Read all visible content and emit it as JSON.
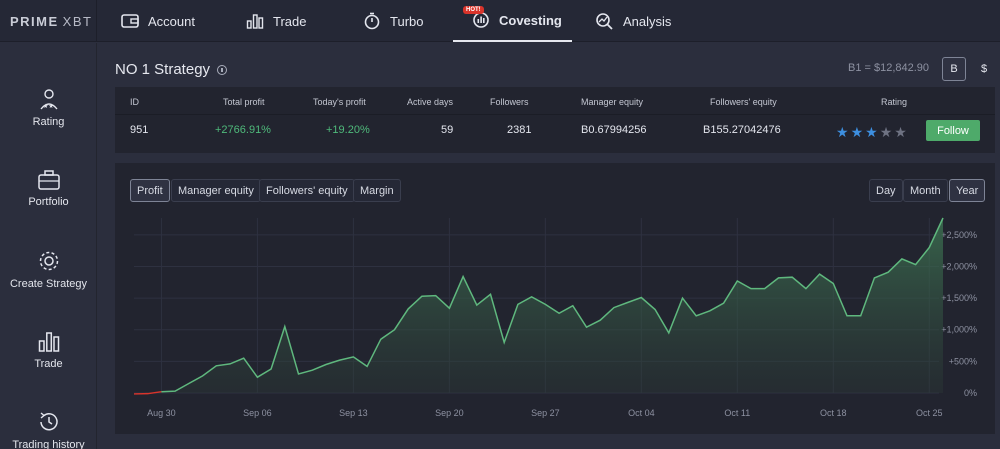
{
  "logo": {
    "brand": "PRIME",
    "suffix": "XBT"
  },
  "nav": [
    {
      "label": "Account",
      "icon": "wallet-icon"
    },
    {
      "label": "Trade",
      "icon": "bar-chart-icon"
    },
    {
      "label": "Turbo",
      "icon": "stopwatch-icon"
    },
    {
      "label": "Covesting",
      "icon": "covesting-icon",
      "badge": "HOT!",
      "active": true
    },
    {
      "label": "Analysis",
      "icon": "analysis-icon"
    }
  ],
  "sidebar": [
    {
      "label": "Rating",
      "icon": "rating-icon"
    },
    {
      "label": "Portfolio",
      "icon": "briefcase-icon"
    },
    {
      "label": "Create Strategy",
      "icon": "gear-icon"
    },
    {
      "label": "Trade",
      "icon": "bar-chart-icon"
    },
    {
      "label": "Trading history",
      "icon": "history-icon"
    }
  ],
  "strategy": {
    "title": "NO 1 Strategy",
    "balance": "B1 = $12,842.90",
    "currency_buttons": [
      {
        "label": "B",
        "active": true
      },
      {
        "label": "$",
        "active": false
      }
    ]
  },
  "table": {
    "headers": [
      "ID",
      "Total profit",
      "Today's profit",
      "Active days",
      "Followers",
      "Manager equity",
      "Followers' equity",
      "Rating"
    ],
    "row": {
      "id": "951",
      "total_profit": "+2766.91%",
      "today_profit": "+19.20%",
      "active_days": "59",
      "followers": "2381",
      "manager_equity": "B0.67994256",
      "followers_equity": "B155.27042476",
      "rating": 3,
      "rating_max": 5
    },
    "follow_label": "Follow"
  },
  "chart_tabs": [
    {
      "label": "Profit",
      "active": true
    },
    {
      "label": "Manager equity",
      "active": false
    },
    {
      "label": "Followers' equity",
      "active": false
    },
    {
      "label": "Margin",
      "active": false
    }
  ],
  "range_tabs": [
    {
      "label": "Day",
      "active": false
    },
    {
      "label": "Month",
      "active": false
    },
    {
      "label": "Year",
      "active": true
    }
  ],
  "colors": {
    "accent_green": "#4eaa6a",
    "profit_text": "#4fba7b",
    "star": "#3d8fe0",
    "star_off": "#6e7282",
    "loss_line": "#d9342b"
  },
  "chart_data": {
    "type": "area",
    "x_tick_labels": [
      "Aug 30",
      "Sep 06",
      "Sep 13",
      "Sep 20",
      "Sep 27",
      "Oct 04",
      "Oct 11",
      "Oct 18",
      "Oct 25"
    ],
    "y_tick_labels": [
      "0%",
      "+500%",
      "+1,000%",
      "+1,500%",
      "+2,000%",
      "+2,500%"
    ],
    "ylim": [
      0,
      2766
    ],
    "series": [
      {
        "x": [
          "Aug 28",
          "Aug 29",
          "Aug 30",
          "Aug 31",
          "Sep 01",
          "Sep 02",
          "Sep 03",
          "Sep 04",
          "Sep 05",
          "Sep 06",
          "Sep 07",
          "Sep 08",
          "Sep 09",
          "Sep 10",
          "Sep 11",
          "Sep 12",
          "Sep 13",
          "Sep 14",
          "Sep 15",
          "Sep 16",
          "Sep 17",
          "Sep 18",
          "Sep 19",
          "Sep 20",
          "Sep 21",
          "Sep 22",
          "Sep 23",
          "Sep 24",
          "Sep 25",
          "Sep 26",
          "Sep 27",
          "Sep 28",
          "Sep 29",
          "Sep 30",
          "Oct 01",
          "Oct 02",
          "Oct 03",
          "Oct 04",
          "Oct 05",
          "Oct 06",
          "Oct 07",
          "Oct 08",
          "Oct 09",
          "Oct 10",
          "Oct 11",
          "Oct 12",
          "Oct 13",
          "Oct 14",
          "Oct 15",
          "Oct 16",
          "Oct 17",
          "Oct 18",
          "Oct 19",
          "Oct 20",
          "Oct 21",
          "Oct 22",
          "Oct 23",
          "Oct 24",
          "Oct 25",
          "Oct 26"
        ],
        "values": [
          -15,
          -10,
          20,
          30,
          150,
          270,
          430,
          460,
          550,
          250,
          380,
          1050,
          300,
          360,
          450,
          520,
          570,
          420,
          850,
          1000,
          1330,
          1530,
          1540,
          1340,
          1840,
          1390,
          1560,
          800,
          1400,
          1520,
          1400,
          1260,
          1380,
          1040,
          1150,
          1350,
          1430,
          1510,
          1320,
          950,
          1500,
          1220,
          1300,
          1420,
          1770,
          1650,
          1650,
          1820,
          1830,
          1650,
          1880,
          1730,
          1220,
          1220,
          1820,
          1910,
          2120,
          2030,
          2300,
          2766
        ]
      }
    ]
  }
}
